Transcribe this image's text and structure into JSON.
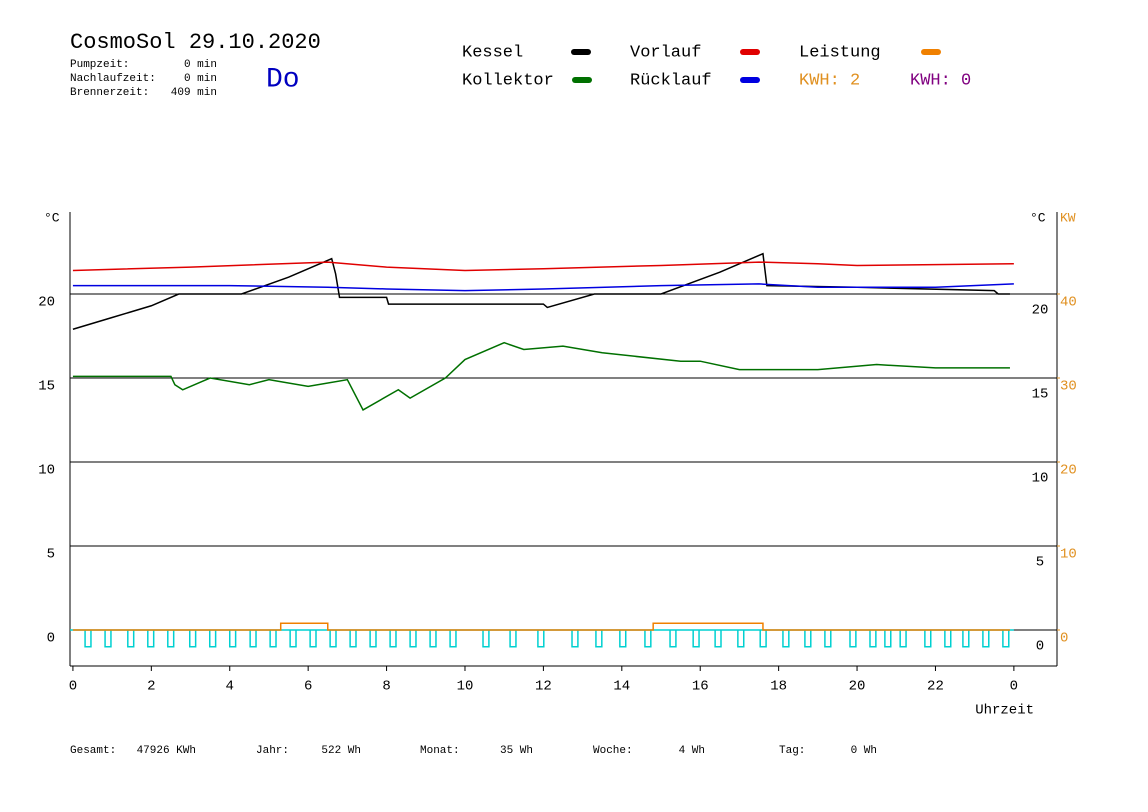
{
  "chart_data": {
    "type": "line",
    "title": "CosmoSol 29.10.2020",
    "day": "Do",
    "info": [
      {
        "label": "Pumpzeit:",
        "value": "0 min"
      },
      {
        "label": "Nachlaufzeit:",
        "value": "0 min"
      },
      {
        "label": "Brennerzeit:",
        "value": "409 min"
      }
    ],
    "y_label": "°C",
    "y2_label": "KW",
    "x_label": "Uhrzeit",
    "xlim": [
      -0.1,
      25.1
    ],
    "xticks": [
      0,
      2,
      4,
      6,
      8,
      10,
      12,
      14,
      16,
      18,
      20,
      22,
      {
        "value": 24,
        "label": "0"
      }
    ],
    "ylim": [
      -2,
      25
    ],
    "yticks": [
      0,
      5,
      10,
      15,
      20
    ],
    "y2lim": [
      -4,
      50
    ],
    "y2ticks": [
      0,
      10,
      20,
      30,
      40
    ],
    "grid": true,
    "series": [
      {
        "name": "Kessel",
        "color": "#000000",
        "x": [
          0,
          1,
          2,
          2.7,
          4.3,
          5.5,
          6.6,
          6.7,
          6.8,
          8,
          8.05,
          12,
          12.1,
          13.3,
          15,
          16.5,
          17.6,
          17.7,
          20,
          23.5,
          23.6,
          23.9
        ],
        "values": [
          17.9,
          18.6,
          19.3,
          20,
          20,
          21,
          22.1,
          21.2,
          19.8,
          19.8,
          19.4,
          19.4,
          19.2,
          20,
          20,
          21.3,
          22.4,
          20.5,
          20.4,
          20.2,
          20,
          20
        ]
      },
      {
        "name": "Vorlauf",
        "color": "#e00000",
        "x": [
          0,
          3,
          6.5,
          8,
          10,
          12,
          15,
          17.5,
          19,
          20,
          24
        ],
        "values": [
          21.4,
          21.6,
          21.9,
          21.6,
          21.4,
          21.5,
          21.7,
          21.9,
          21.8,
          21.7,
          21.8
        ]
      },
      {
        "name": "Leistung",
        "color": "#f08000",
        "axis": "y2",
        "x": [
          0,
          5.3,
          5.3,
          6.5,
          6.5,
          14.8,
          14.8,
          17.6,
          17.6,
          23.9
        ],
        "values": [
          0,
          0,
          0.8,
          0.8,
          0,
          0,
          0.8,
          0.8,
          0,
          0
        ]
      },
      {
        "name": "Kollektor",
        "color": "#007000",
        "x": [
          0,
          2.5,
          2.6,
          2.8,
          3.5,
          4.5,
          5,
          6,
          7,
          7.4,
          8.3,
          8.6,
          9.5,
          10,
          11,
          11.5,
          12.5,
          13.5,
          15.5,
          16,
          17,
          19,
          20.5,
          22,
          23.9
        ],
        "values": [
          15.1,
          15.1,
          14.6,
          14.3,
          15.0,
          14.6,
          14.9,
          14.5,
          14.9,
          13.1,
          14.3,
          13.8,
          15.0,
          16.1,
          17.1,
          16.7,
          16.9,
          16.5,
          16.0,
          16.0,
          15.5,
          15.5,
          15.8,
          15.6,
          15.6
        ]
      },
      {
        "name": "Rücklauf",
        "color": "#0000e0",
        "x": [
          0,
          4,
          6.5,
          8,
          10,
          12,
          15,
          17.5,
          19,
          22,
          24
        ],
        "values": [
          20.5,
          20.5,
          20.4,
          20.3,
          20.2,
          20.3,
          20.5,
          20.6,
          20.4,
          20.4,
          20.6
        ]
      }
    ],
    "kwh": [
      {
        "text": "KWH: 2",
        "color": "#e09020"
      },
      {
        "text": "KWH: 0",
        "color": "#800080"
      }
    ],
    "pulses": {
      "color": "#00d0d0",
      "width": 0.15,
      "depth": -1,
      "x": [
        0.31,
        0.82,
        1.4,
        1.91,
        2.42,
        2.98,
        3.49,
        4.0,
        4.52,
        5.03,
        5.54,
        6.05,
        6.56,
        7.07,
        7.58,
        8.09,
        8.6,
        9.11,
        9.62,
        10.46,
        11.15,
        11.86,
        12.73,
        13.34,
        13.95,
        14.59,
        15.23,
        15.82,
        16.38,
        16.96,
        17.53,
        18.11,
        18.67,
        19.18,
        19.82,
        20.33,
        20.71,
        21.1,
        21.73,
        22.24,
        22.7,
        23.21,
        23.72
      ]
    },
    "stats": [
      {
        "label": "Gesamt:",
        "value": "47926 KWh"
      },
      {
        "label": "Jahr:",
        "value": "522 Wh"
      },
      {
        "label": "Monat:",
        "value": "35 Wh"
      },
      {
        "label": "Woche:",
        "value": "4 Wh"
      },
      {
        "label": "Tag:",
        "value": "0 Wh"
      }
    ]
  }
}
